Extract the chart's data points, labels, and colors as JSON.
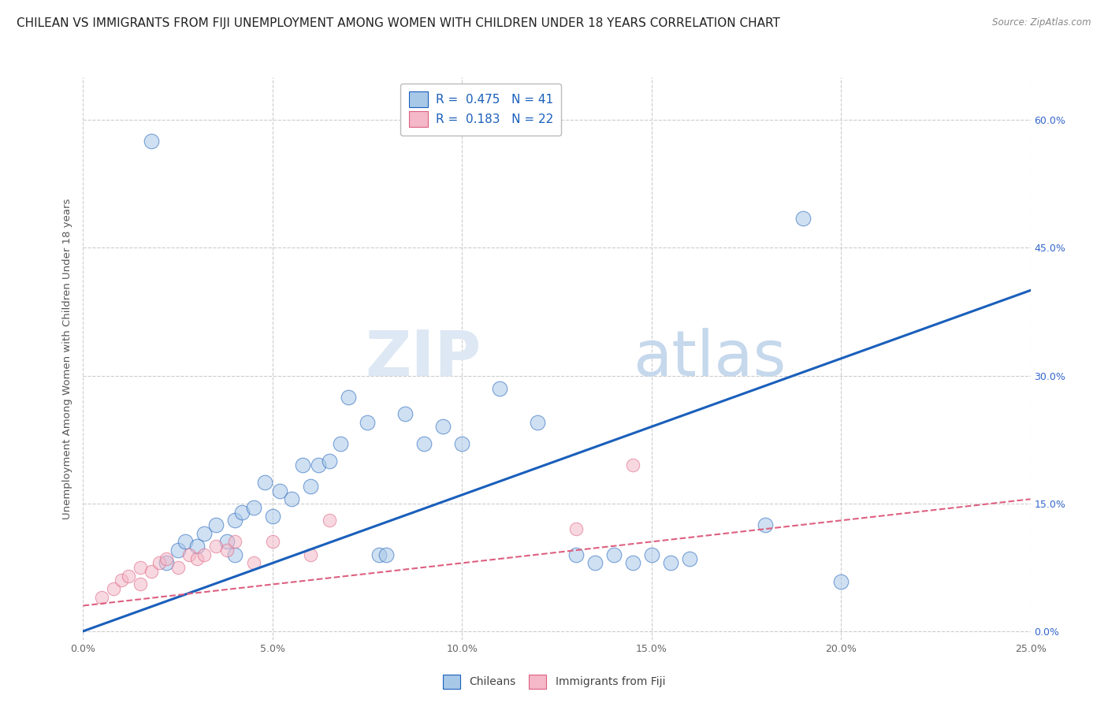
{
  "title": "CHILEAN VS IMMIGRANTS FROM FIJI UNEMPLOYMENT AMONG WOMEN WITH CHILDREN UNDER 18 YEARS CORRELATION CHART",
  "source": "Source: ZipAtlas.com",
  "ylabel": "Unemployment Among Women with Children Under 18 years",
  "xlim": [
    0.0,
    0.25
  ],
  "ylim": [
    -0.01,
    0.65
  ],
  "yticks": [
    0.0,
    0.15,
    0.3,
    0.45,
    0.6
  ],
  "xticks": [
    0.0,
    0.05,
    0.1,
    0.15,
    0.2,
    0.25
  ],
  "legend1_r": "R = ",
  "legend1_rv": "0.475",
  "legend1_n": "  N = ",
  "legend1_nv": "41",
  "legend2_r": "R = ",
  "legend2_rv": "0.183",
  "legend2_n": "  N = ",
  "legend2_nv": "22",
  "legend_bottom_label1": "Chileans",
  "legend_bottom_label2": "Immigrants from Fiji",
  "blue_scatter_x": [
    0.018,
    0.022,
    0.025,
    0.027,
    0.03,
    0.032,
    0.035,
    0.038,
    0.04,
    0.04,
    0.042,
    0.045,
    0.048,
    0.05,
    0.052,
    0.055,
    0.058,
    0.06,
    0.062,
    0.065,
    0.068,
    0.07,
    0.075,
    0.078,
    0.08,
    0.085,
    0.09,
    0.095,
    0.1,
    0.11,
    0.12,
    0.13,
    0.14,
    0.15,
    0.16,
    0.18,
    0.19,
    0.2,
    0.135,
    0.145,
    0.155
  ],
  "blue_scatter_y": [
    0.575,
    0.08,
    0.095,
    0.105,
    0.1,
    0.115,
    0.125,
    0.105,
    0.09,
    0.13,
    0.14,
    0.145,
    0.175,
    0.135,
    0.165,
    0.155,
    0.195,
    0.17,
    0.195,
    0.2,
    0.22,
    0.275,
    0.245,
    0.09,
    0.09,
    0.255,
    0.22,
    0.24,
    0.22,
    0.285,
    0.245,
    0.09,
    0.09,
    0.09,
    0.085,
    0.125,
    0.485,
    0.058,
    0.08,
    0.08,
    0.08
  ],
  "pink_scatter_x": [
    0.005,
    0.008,
    0.01,
    0.012,
    0.015,
    0.015,
    0.018,
    0.02,
    0.022,
    0.025,
    0.028,
    0.03,
    0.032,
    0.035,
    0.038,
    0.04,
    0.045,
    0.05,
    0.06,
    0.065,
    0.13,
    0.145
  ],
  "pink_scatter_y": [
    0.04,
    0.05,
    0.06,
    0.065,
    0.055,
    0.075,
    0.07,
    0.08,
    0.085,
    0.075,
    0.09,
    0.085,
    0.09,
    0.1,
    0.095,
    0.105,
    0.08,
    0.105,
    0.09,
    0.13,
    0.12,
    0.195
  ],
  "blue_line_x": [
    0.0,
    0.25
  ],
  "blue_line_y": [
    0.0,
    0.4
  ],
  "pink_line_x": [
    0.0,
    0.25
  ],
  "pink_line_y": [
    0.03,
    0.155
  ],
  "blue_color": "#a8c8e8",
  "pink_color": "#f4b8c8",
  "blue_line_color": "#1a5fbb",
  "pink_line_color": "#dd6080",
  "grid_color": "#cccccc",
  "right_tick_color": "#3366cc",
  "background_color": "#ffffff",
  "title_fontsize": 11,
  "axis_label_fontsize": 9.5,
  "tick_fontsize": 9,
  "legend_fontsize": 11
}
